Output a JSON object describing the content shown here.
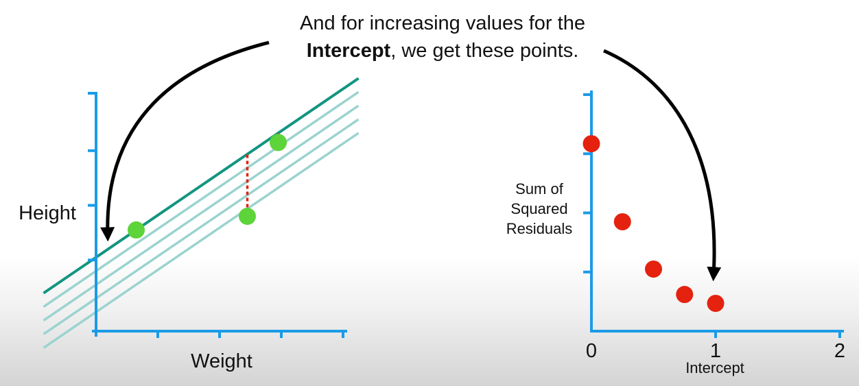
{
  "caption": {
    "line1": "And for increasing values for the",
    "line2_bold": "Intercept",
    "line2_rest": ", we get these points."
  },
  "colors": {
    "axis": "#1a9be8",
    "best_fit_line": "#129580",
    "shifted_lines": "#9bd3cf",
    "data_points": "#5cd43a",
    "residuals": "#e02414",
    "ssr_points": "#e4220f",
    "arrows": "#000000"
  },
  "chart_data": [
    {
      "type": "scatter",
      "title": "",
      "xlabel": "Weight",
      "ylabel": "Height",
      "points": [
        {
          "x": 0.65,
          "y": 1.55
        },
        {
          "x": 2.45,
          "y": 1.8
        },
        {
          "x": 2.95,
          "y": 3.15
        }
      ],
      "xlim": [
        0,
        4
      ],
      "ylim": [
        -0.3,
        4
      ],
      "lines": [
        {
          "intercept": 1.05,
          "slope": 0.77,
          "role": "current"
        },
        {
          "intercept": 0.8,
          "slope": 0.77,
          "role": "shifted"
        },
        {
          "intercept": 0.55,
          "slope": 0.77,
          "role": "shifted"
        },
        {
          "intercept": 0.3,
          "slope": 0.77,
          "role": "shifted"
        },
        {
          "intercept": 0.05,
          "slope": 0.77,
          "role": "shifted"
        }
      ],
      "grid": false
    },
    {
      "type": "scatter",
      "title": "",
      "xlabel": "Intercept",
      "ylabel": "Sum of Squared Residuals",
      "x_ticks": [
        "0",
        "1",
        "2"
      ],
      "points": [
        {
          "x": 0.0,
          "y": 3.17
        },
        {
          "x": 0.25,
          "y": 1.85
        },
        {
          "x": 0.5,
          "y": 1.05
        },
        {
          "x": 0.75,
          "y": 0.62
        },
        {
          "x": 1.0,
          "y": 0.47
        }
      ],
      "xlim": [
        0,
        2
      ],
      "ylim": [
        0,
        4
      ],
      "grid": false
    }
  ]
}
